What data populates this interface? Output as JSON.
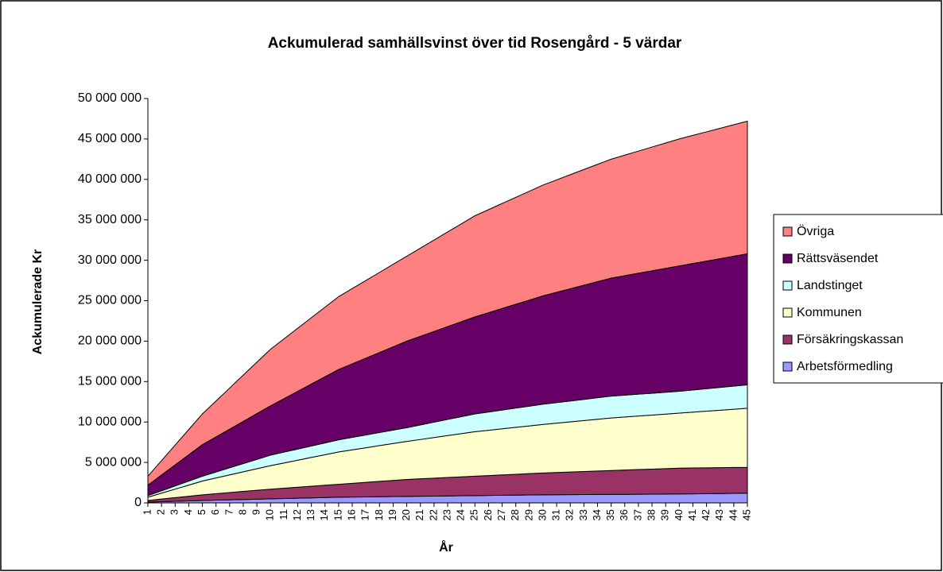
{
  "chart_data": {
    "type": "stacked_area",
    "title": "Ackumulerad samhällsvinst över tid Rosengård - 5 värdar",
    "x_label": "År",
    "y_label": "Ackumulerade Kr",
    "categories": [
      "1",
      "2",
      "3",
      "4",
      "5",
      "6",
      "7",
      "8",
      "9",
      "10",
      "11",
      "12",
      "13",
      "14",
      "15",
      "16",
      "17",
      "18",
      "19",
      "20",
      "21",
      "22",
      "23",
      "24",
      "25",
      "26",
      "27",
      "28",
      "29",
      "30",
      "31",
      "32",
      "33",
      "34",
      "35",
      "36",
      "37",
      "38",
      "39",
      "40",
      "41",
      "42",
      "43",
      "44",
      "45"
    ],
    "ylim": [
      0,
      50000000
    ],
    "yticks": [
      0,
      {
        "value": 5000000,
        "label": "5 000 000"
      },
      {
        "value": 10000000,
        "label": "10 000 000"
      },
      {
        "value": 15000000,
        "label": "15 000 000"
      },
      {
        "value": 20000000,
        "label": "20 000 000"
      },
      {
        "value": 25000000,
        "label": "25 000 000"
      },
      {
        "value": 30000000,
        "label": "30 000 000"
      },
      {
        "value": 35000000,
        "label": "35 000 000"
      },
      {
        "value": 40000000,
        "label": "40 000 000"
      },
      {
        "value": 45000000,
        "label": "45 000 000"
      },
      {
        "value": 50000000,
        "label": "50 000 000"
      }
    ],
    "grid": false,
    "legend_position": "right",
    "series": [
      {
        "name": "Arbetsförmedling",
        "color": "#9999ff",
        "values": [
          100000,
          150000,
          200000,
          250000,
          300000,
          340000,
          380000,
          420000,
          460000,
          500000,
          540000,
          580000,
          620000,
          660000,
          700000,
          720000,
          740000,
          760000,
          780000,
          800000,
          820000,
          840000,
          860000,
          880000,
          900000,
          920000,
          940000,
          960000,
          980000,
          1000000,
          1010000,
          1020000,
          1030000,
          1040000,
          1050000,
          1060000,
          1070000,
          1080000,
          1090000,
          1100000,
          1120000,
          1140000,
          1160000,
          1180000,
          1200000
        ]
      },
      {
        "name": "Försäkringskassan",
        "color": "#993366",
        "values": [
          200000,
          325000,
          450000,
          575000,
          700000,
          800000,
          900000,
          1000000,
          1100000,
          1200000,
          1280000,
          1360000,
          1440000,
          1520000,
          1600000,
          1700000,
          1800000,
          1900000,
          2000000,
          2100000,
          2160000,
          2220000,
          2280000,
          2340000,
          2400000,
          2460000,
          2520000,
          2580000,
          2640000,
          2700000,
          2750000,
          2800000,
          2850000,
          2900000,
          2950000,
          3000000,
          3050000,
          3100000,
          3150000,
          3200000,
          3200000,
          3200000,
          3200000,
          3200000,
          3200000
        ]
      },
      {
        "name": "Kommunen",
        "color": "#ffffcc",
        "values": [
          400000,
          725000,
          1050000,
          1375000,
          1700000,
          1940000,
          2180000,
          2420000,
          2660000,
          2900000,
          3120000,
          3340000,
          3560000,
          3780000,
          4000000,
          4140000,
          4280000,
          4420000,
          4560000,
          4700000,
          4860000,
          5020000,
          5180000,
          5340000,
          5500000,
          5600000,
          5700000,
          5800000,
          5900000,
          6000000,
          6100000,
          6200000,
          6300000,
          6400000,
          6500000,
          6560000,
          6620000,
          6680000,
          6740000,
          6800000,
          6900000,
          7000000,
          7100000,
          7200000,
          7300000
        ]
      },
      {
        "name": "Landstinget",
        "color": "#ccffff",
        "values": [
          200000,
          300000,
          400000,
          500000,
          600000,
          740000,
          880000,
          1020000,
          1160000,
          1300000,
          1340000,
          1380000,
          1420000,
          1460000,
          1500000,
          1540000,
          1580000,
          1620000,
          1660000,
          1700000,
          1800000,
          1900000,
          2000000,
          2100000,
          2200000,
          2260000,
          2320000,
          2380000,
          2440000,
          2500000,
          2540000,
          2580000,
          2620000,
          2660000,
          2700000,
          2700000,
          2700000,
          2700000,
          2700000,
          2700000,
          2740000,
          2780000,
          2820000,
          2860000,
          2900000
        ]
      },
      {
        "name": "Rättsväsendet",
        "color": "#660066",
        "values": [
          1300000,
          1950000,
          2600000,
          3250000,
          3900000,
          4340000,
          4780000,
          5220000,
          5660000,
          6100000,
          6620000,
          7140000,
          7660000,
          8180000,
          8700000,
          9100000,
          9500000,
          9900000,
          10300000,
          10700000,
          10960000,
          11220000,
          11480000,
          11740000,
          12000000,
          12280000,
          12560000,
          12840000,
          13120000,
          13400000,
          13640000,
          13880000,
          14120000,
          14360000,
          14600000,
          14780000,
          14960000,
          15140000,
          15320000,
          15500000,
          15640000,
          15780000,
          15920000,
          16060000,
          16200000
        ]
      },
      {
        "name": "Övriga",
        "color": "#ff8080",
        "values": [
          1100000,
          1775000,
          2450000,
          3125000,
          3800000,
          4440000,
          5080000,
          5720000,
          6360000,
          7000000,
          7400000,
          7800000,
          8200000,
          8600000,
          9000000,
          9300000,
          9600000,
          9900000,
          10200000,
          10500000,
          10900000,
          11300000,
          11700000,
          12100000,
          12500000,
          12740000,
          12980000,
          13220000,
          13460000,
          13700000,
          13900000,
          14100000,
          14300000,
          14500000,
          14700000,
          14900000,
          15100000,
          15300000,
          15500000,
          15700000,
          15840000,
          15980000,
          16120000,
          16260000,
          16400000
        ]
      }
    ]
  }
}
